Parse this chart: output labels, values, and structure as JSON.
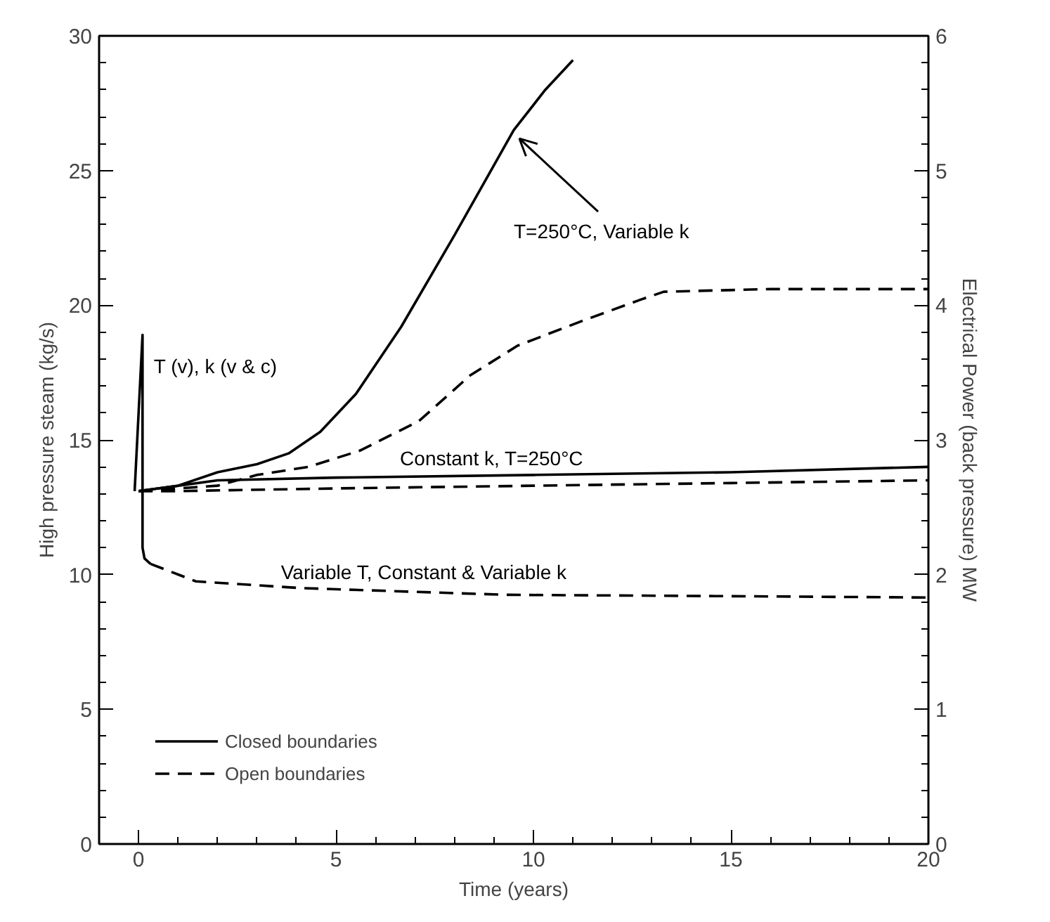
{
  "chart_data": {
    "type": "line",
    "xlabel": "Time (years)",
    "ylabel": "High pressure steam (kg/s)",
    "y2label": "Electrical Power (back pressure) MW",
    "xlim": [
      -1,
      20
    ],
    "xticks": [
      0,
      5,
      10,
      15,
      20
    ],
    "ylim": [
      0,
      30
    ],
    "yticks": [
      0,
      5,
      10,
      15,
      20,
      25,
      30
    ],
    "y2lim": [
      0,
      6
    ],
    "y2ticks": [
      0,
      1,
      2,
      3,
      4,
      5,
      6
    ],
    "grid": false,
    "legend": "bottom left",
    "series": [
      {
        "name": "Closed boundaries",
        "color": "#000000",
        "line_style": "solid",
        "x": [
          0,
          1,
          2,
          3,
          3.8,
          4.6,
          5.5,
          6.65,
          8.0,
          9.5,
          10.3,
          11.0
        ],
        "values": [
          13.1,
          13.3,
          13.8,
          14.1,
          14.5,
          15.3,
          16.7,
          19.2,
          22.6,
          26.5,
          28.0,
          29.1
        ]
      },
      {
        "name": "Open boundaries",
        "color": "#000000",
        "line_style": "dashed",
        "x": [
          0,
          2,
          3,
          4.3,
          5.6,
          7.1,
          8.4,
          9.6,
          11.2,
          12.7,
          13.3,
          16,
          19,
          20
        ],
        "values": [
          13.1,
          13.3,
          13.7,
          14.0,
          14.6,
          15.7,
          17.4,
          18.5,
          19.4,
          20.2,
          20.5,
          20.6,
          20.6,
          20.6
        ]
      },
      {
        "color": "#000000",
        "line_style": "solid",
        "x": [
          0,
          2,
          5,
          10,
          15,
          20
        ],
        "values": [
          13.1,
          13.5,
          13.6,
          13.7,
          13.8,
          14.0
        ]
      },
      {
        "color": "#000000",
        "line_style": "dashed",
        "x": [
          0,
          1,
          5,
          10,
          15,
          20
        ],
        "values": [
          13.1,
          13.1,
          13.2,
          13.3,
          13.4,
          13.5
        ]
      },
      {
        "color": "#000000",
        "line_style": "solid",
        "x": [
          -0.1,
          0.1,
          0.1,
          0.15,
          0.3
        ],
        "values": [
          13.1,
          18.9,
          11.0,
          10.6,
          10.4
        ]
      },
      {
        "color": "#000000",
        "line_style": "dashed",
        "x": [
          0.3,
          1.45,
          4.1,
          9.3,
          15,
          20
        ],
        "values": [
          10.4,
          9.75,
          9.5,
          9.25,
          9.2,
          9.15
        ]
      }
    ],
    "annotations": [
      {
        "text": "T=250°C,  Variable k",
        "x": 9.5,
        "y": 26.5
      },
      {
        "text": "T (v),  k (v & c)",
        "x": 0.1,
        "y": 18.9
      },
      {
        "text": "Constant k,  T=250°C",
        "x": 10,
        "y": 13.7
      },
      {
        "text": "Variable T,  Constant & Variable k",
        "x": 9.3,
        "y": 9.25
      }
    ]
  }
}
